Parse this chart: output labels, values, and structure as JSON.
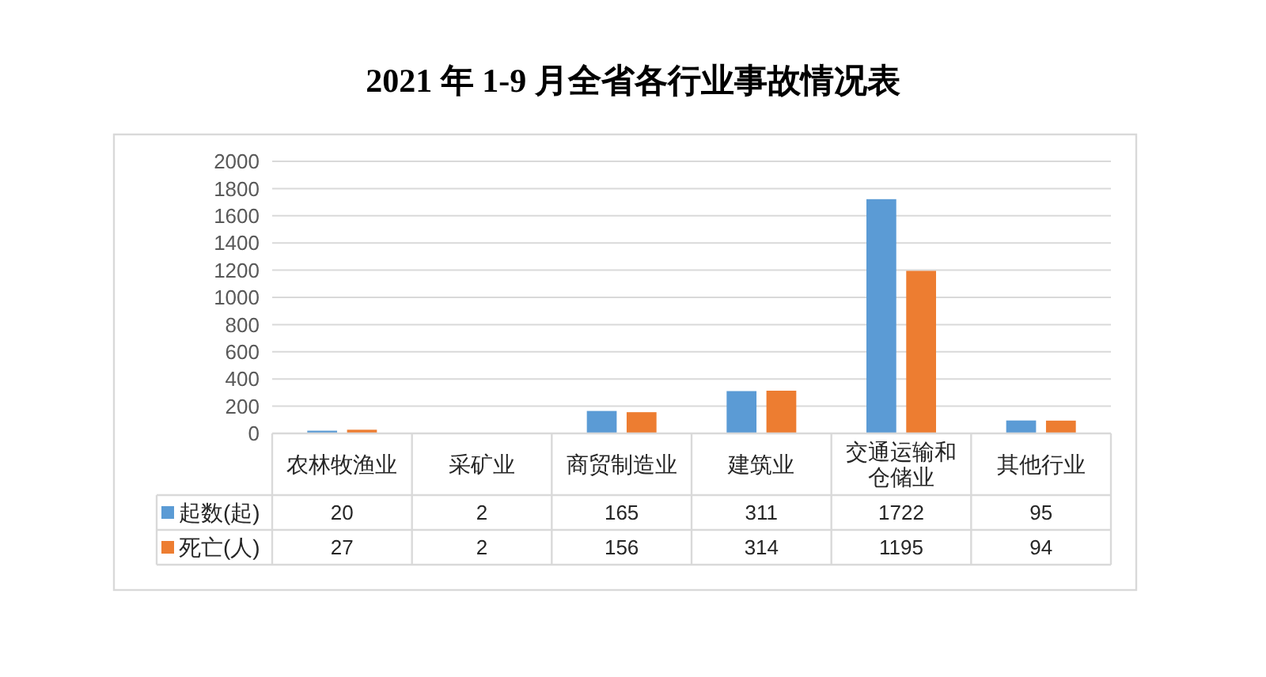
{
  "chart_data": {
    "type": "bar",
    "title": "2021 年 1-9 月全省各行业事故情况表",
    "categories": [
      "农林牧渔业",
      "采矿业",
      "商贸制造业",
      "建筑业",
      "交通运输和仓储业",
      "其他行业"
    ],
    "series": [
      {
        "name": "起数(起)",
        "color": "#5b9bd5",
        "values": [
          20,
          2,
          165,
          311,
          1722,
          95
        ]
      },
      {
        "name": "死亡(人)",
        "color": "#ed7d31",
        "values": [
          27,
          2,
          156,
          314,
          1195,
          94
        ]
      }
    ],
    "ylim": [
      0,
      2000
    ],
    "yticks": [
      0,
      200,
      400,
      600,
      800,
      1000,
      1200,
      1400,
      1600,
      1800,
      2000
    ],
    "grid": "y",
    "legend": "bottom left",
    "data_labels": true
  }
}
